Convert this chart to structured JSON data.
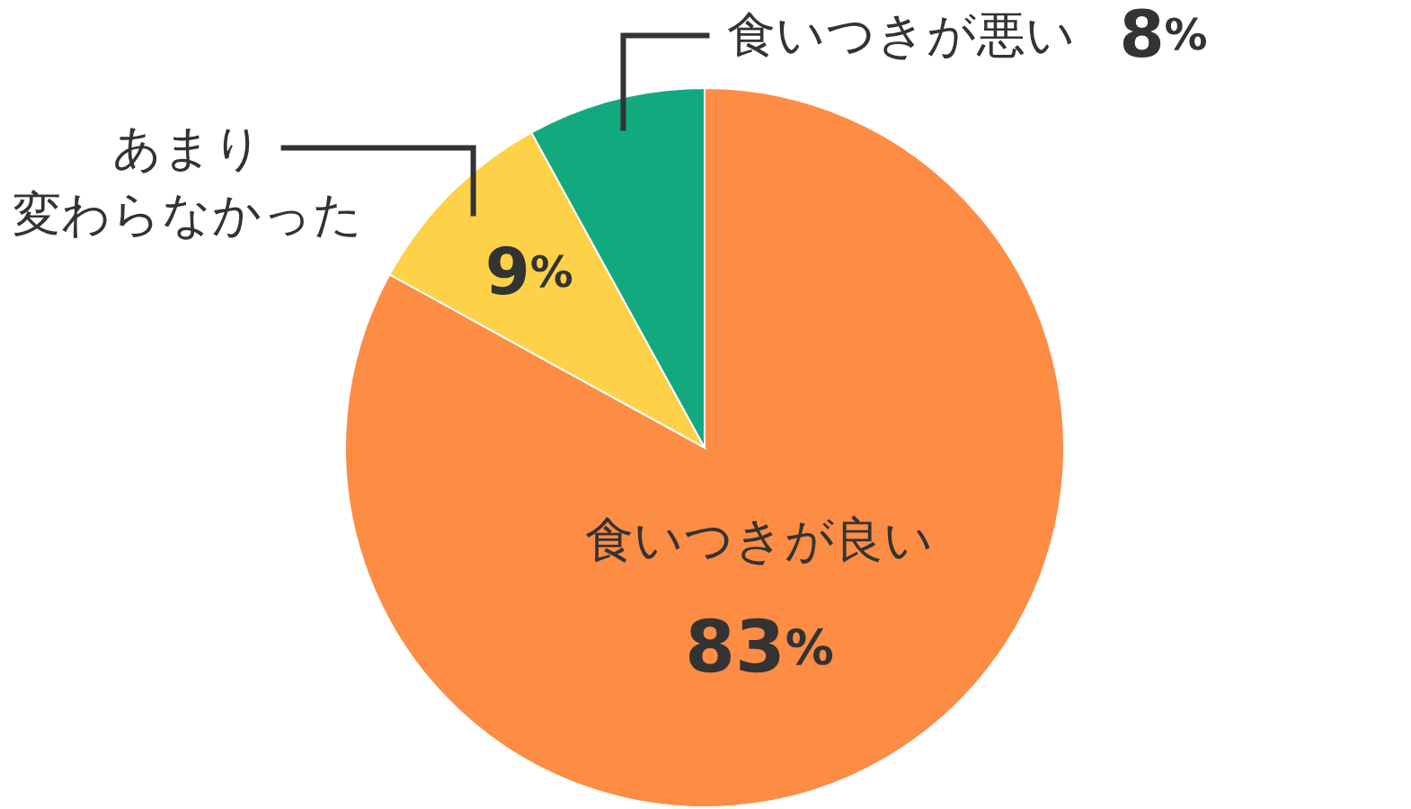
{
  "chart_data": {
    "type": "pie",
    "categories": [
      "食いつきが良い",
      "あまり変わらなかった",
      "食いつきが悪い"
    ],
    "values": [
      83,
      9,
      8
    ],
    "colors": [
      "#fd8c44",
      "#fdd248",
      "#12a97f"
    ],
    "value_labels": [
      "83%",
      "9%",
      "8%"
    ]
  }
}
